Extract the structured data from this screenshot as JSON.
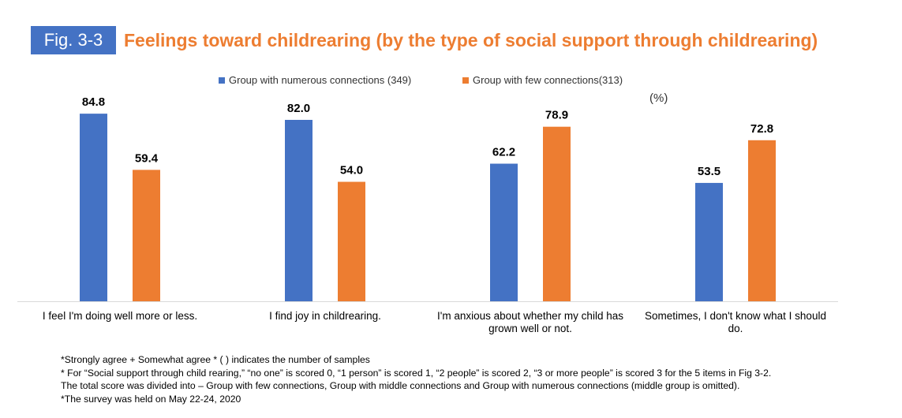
{
  "header": {
    "fig_label": "Fig. 3-3",
    "title": "Feelings toward childrearing (by the type of social support through childrearing)"
  },
  "unit_label": "(%)",
  "legend": [
    {
      "label": "Group with numerous connections (349)",
      "color": "#4472c4"
    },
    {
      "label": "Group with few connections(313)",
      "color": "#ed7d31"
    }
  ],
  "chart_data": {
    "type": "bar",
    "categories": [
      [
        "I feel I'm doing well more or less."
      ],
      [
        "I find joy in childrearing."
      ],
      [
        "I'm anxious about whether my child has",
        "grown well or not."
      ],
      [
        "Sometimes, I don't know what I should",
        "do."
      ]
    ],
    "series": [
      {
        "name": "Group with numerous connections (349)",
        "color": "#4472c4",
        "values": [
          84.8,
          82.0,
          62.2,
          53.5
        ]
      },
      {
        "name": "Group with few connections(313)",
        "color": "#ed7d31",
        "values": [
          59.4,
          54.0,
          78.9,
          72.8
        ]
      }
    ],
    "ylim": [
      0,
      100
    ],
    "grid": false,
    "legend_position": "top-center"
  },
  "notes": [
    "*Strongly agree + Somewhat agree  * ( ) indicates the number of samples",
    "* For “Social support through child rearing,” “no one” is scored 0, “1 person” is scored 1, “2 people” is scored 2, “3 or more people” is scored 3 for the 5 items in Fig 3-2.",
    "The total score was divided into – Group with few connections, Group with middle connections and Group with numerous connections (middle group is omitted).",
    "*The survey was held on May 22-24, 2020"
  ]
}
